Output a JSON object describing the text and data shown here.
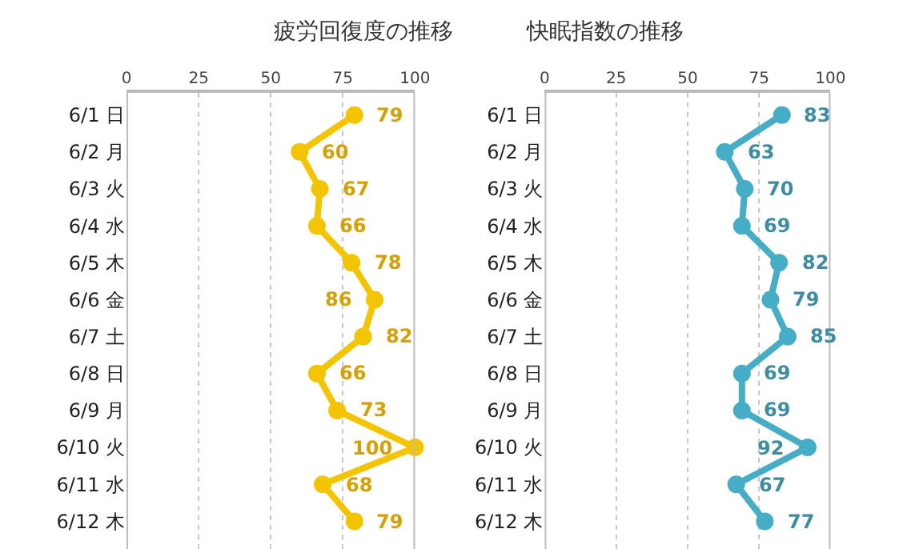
{
  "chart_data": [
    {
      "type": "line",
      "orientation": "horizontal",
      "title": "疲労回復度の推移",
      "categories": [
        "6/1 日",
        "6/2 月",
        "6/3 火",
        "6/4 水",
        "6/5 木",
        "6/6 金",
        "6/7 土",
        "6/8 日",
        "6/9 月",
        "6/10 火",
        "6/11 水",
        "6/12 木"
      ],
      "series": [
        {
          "color": "#f5c400",
          "values": [
            79,
            60,
            67,
            66,
            78,
            86,
            82,
            66,
            73,
            100,
            68,
            79
          ]
        }
      ],
      "xlim": [
        0,
        100
      ],
      "xticks": [
        0,
        25,
        50,
        75,
        100
      ],
      "grid": "x",
      "marker": "circle",
      "line_style": "solid",
      "data_labels": true
    },
    {
      "type": "line",
      "orientation": "horizontal",
      "title": "快眠指数の推移",
      "categories": [
        "6/1 日",
        "6/2 月",
        "6/3 火",
        "6/4 水",
        "6/5 木",
        "6/6 金",
        "6/7 土",
        "6/8 日",
        "6/9 月",
        "6/10 火",
        "6/11 水",
        "6/12 木"
      ],
      "series": [
        {
          "color": "#45adc6",
          "values": [
            83,
            63,
            70,
            69,
            82,
            79,
            85,
            69,
            69,
            92,
            67,
            77
          ]
        }
      ],
      "xlim": [
        0,
        100
      ],
      "xticks": [
        0,
        25,
        50,
        75,
        100
      ],
      "grid": "x",
      "marker": "circle",
      "line_style": "solid",
      "data_labels": true
    }
  ]
}
